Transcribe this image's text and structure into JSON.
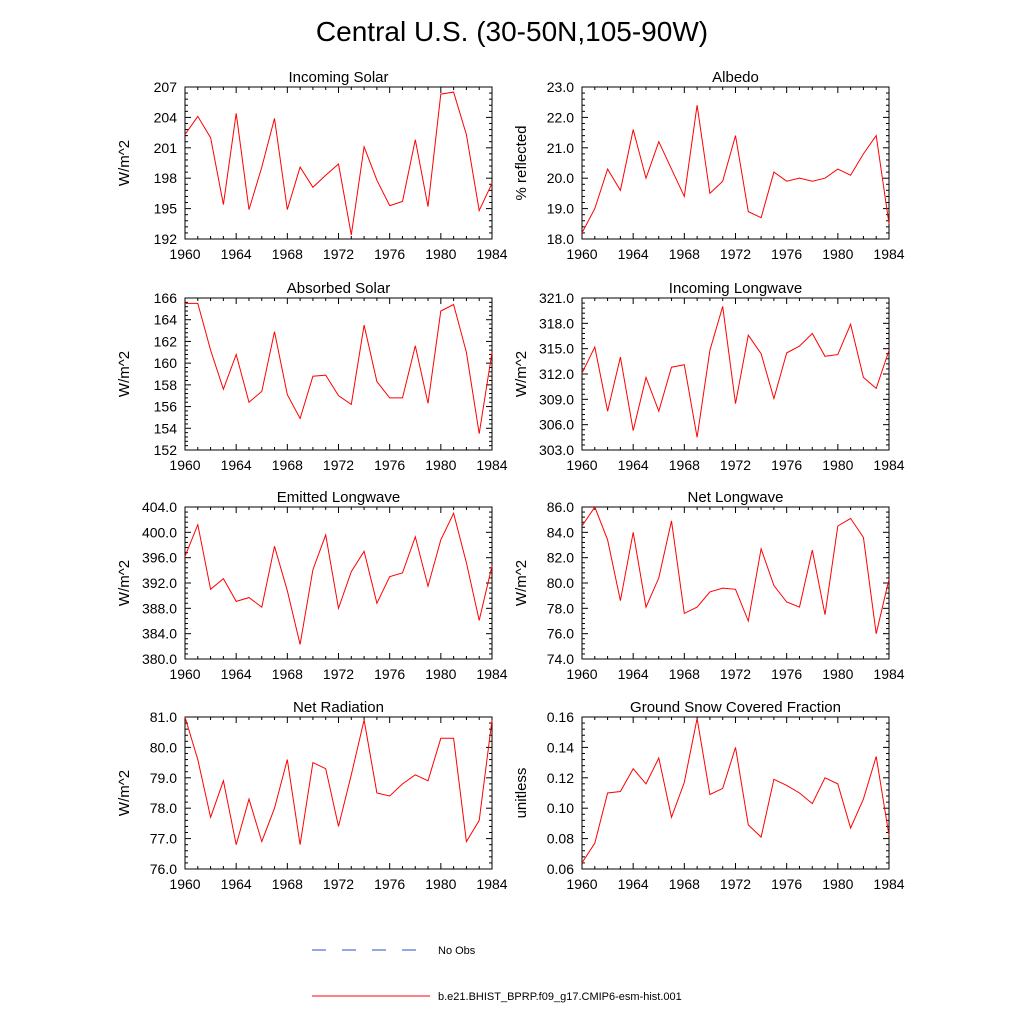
{
  "figure": {
    "title": "Central U.S. (30-50N,105-90W)"
  },
  "legend": [
    {
      "label": "No Obs",
      "color": "#2d4fd0",
      "style": "dashed"
    },
    {
      "label": "b.e21.BHIST_BPRP.f09_g17.CMIP6-esm-hist.001",
      "color": "#ff0000",
      "style": "solid"
    }
  ],
  "chart_data": [
    {
      "type": "line",
      "title": "Incoming Solar",
      "xlabel": "",
      "ylabel": "W/m^2",
      "xlim": [
        1960,
        1984
      ],
      "ylim": [
        192,
        207
      ],
      "xticks": [
        "1960",
        "1964",
        "1968",
        "1972",
        "1976",
        "1980",
        "1984"
      ],
      "yticks": [
        "192",
        "195",
        "198",
        "201",
        "204",
        "207"
      ],
      "series": [
        {
          "color": "#ff0000",
          "x": [
            1960,
            1961,
            1962,
            1963,
            1964,
            1965,
            1966,
            1967,
            1968,
            1969,
            1970,
            1971,
            1972,
            1973,
            1974,
            1975,
            1976,
            1977,
            1978,
            1979,
            1980,
            1981,
            1982,
            1983,
            1984
          ],
          "values": [
            202.3,
            204.1,
            202.0,
            195.4,
            204.4,
            194.9,
            199.1,
            203.9,
            194.9,
            199.1,
            197.1,
            198.3,
            199.4,
            192.4,
            201.1,
            197.8,
            195.3,
            195.7,
            201.8,
            195.2,
            206.3,
            206.5,
            202.3,
            194.8,
            197.5
          ]
        }
      ]
    },
    {
      "type": "line",
      "title": "Albedo",
      "xlabel": "",
      "ylabel": "% reflected",
      "xlim": [
        1960,
        1984
      ],
      "ylim": [
        18.0,
        23.0
      ],
      "xticks": [
        "1960",
        "1964",
        "1968",
        "1972",
        "1976",
        "1980",
        "1984"
      ],
      "yticks": [
        "18.0",
        "19.0",
        "20.0",
        "21.0",
        "22.0",
        "23.0"
      ],
      "series": [
        {
          "color": "#ff0000",
          "x": [
            1960,
            1961,
            1962,
            1963,
            1964,
            1965,
            1966,
            1967,
            1968,
            1969,
            1970,
            1971,
            1972,
            1973,
            1974,
            1975,
            1976,
            1977,
            1978,
            1979,
            1980,
            1981,
            1982,
            1983,
            1984
          ],
          "values": [
            18.2,
            19.0,
            20.3,
            19.6,
            21.6,
            20.0,
            21.2,
            20.3,
            19.4,
            22.4,
            19.5,
            19.9,
            21.4,
            18.9,
            18.7,
            20.2,
            19.9,
            20.0,
            19.9,
            20.0,
            20.3,
            20.1,
            20.8,
            21.4,
            18.5
          ]
        }
      ]
    },
    {
      "type": "line",
      "title": "Absorbed Solar",
      "xlabel": "",
      "ylabel": "W/m^2",
      "xlim": [
        1960,
        1984
      ],
      "ylim": [
        152,
        166
      ],
      "xticks": [
        "1960",
        "1964",
        "1968",
        "1972",
        "1976",
        "1980",
        "1984"
      ],
      "yticks": [
        "152",
        "154",
        "156",
        "158",
        "160",
        "162",
        "164",
        "166"
      ],
      "series": [
        {
          "color": "#ff0000",
          "x": [
            1960,
            1961,
            1962,
            1963,
            1964,
            1965,
            1966,
            1967,
            1968,
            1969,
            1970,
            1971,
            1972,
            1973,
            1974,
            1975,
            1976,
            1977,
            1978,
            1979,
            1980,
            1981,
            1982,
            1983,
            1984
          ],
          "values": [
            165.5,
            165.5,
            161.2,
            157.6,
            160.8,
            156.4,
            157.4,
            162.9,
            157.1,
            154.9,
            158.8,
            158.9,
            157.0,
            156.2,
            163.5,
            158.3,
            156.8,
            156.8,
            161.6,
            156.3,
            164.8,
            165.4,
            161.0,
            153.5,
            161.0
          ]
        }
      ]
    },
    {
      "type": "line",
      "title": "Incoming Longwave",
      "xlabel": "",
      "ylabel": "W/m^2",
      "xlim": [
        1960,
        1984
      ],
      "ylim": [
        303.0,
        321.0
      ],
      "xticks": [
        "1960",
        "1964",
        "1968",
        "1972",
        "1976",
        "1980",
        "1984"
      ],
      "yticks": [
        "303.0",
        "306.0",
        "309.0",
        "312.0",
        "315.0",
        "318.0",
        "321.0"
      ],
      "series": [
        {
          "color": "#ff0000",
          "x": [
            1960,
            1961,
            1962,
            1963,
            1964,
            1965,
            1966,
            1967,
            1968,
            1969,
            1970,
            1971,
            1972,
            1973,
            1974,
            1975,
            1976,
            1977,
            1978,
            1979,
            1980,
            1981,
            1982,
            1983,
            1984
          ],
          "values": [
            312.1,
            315.2,
            307.6,
            314.0,
            305.3,
            311.6,
            307.6,
            312.8,
            313.1,
            304.5,
            314.8,
            320.0,
            308.5,
            316.6,
            314.4,
            309.1,
            314.5,
            315.3,
            316.8,
            314.1,
            314.3,
            317.9,
            311.6,
            310.3,
            314.8
          ]
        }
      ]
    },
    {
      "type": "line",
      "title": "Emitted Longwave",
      "xlabel": "",
      "ylabel": "W/m^2",
      "xlim": [
        1960,
        1984
      ],
      "ylim": [
        380.0,
        404.0
      ],
      "xticks": [
        "1960",
        "1964",
        "1968",
        "1972",
        "1976",
        "1980",
        "1984"
      ],
      "yticks": [
        "380.0",
        "384.0",
        "388.0",
        "392.0",
        "396.0",
        "400.0",
        "404.0"
      ],
      "series": [
        {
          "color": "#ff0000",
          "x": [
            1960,
            1961,
            1962,
            1963,
            1964,
            1965,
            1966,
            1967,
            1968,
            1969,
            1970,
            1971,
            1972,
            1973,
            1974,
            1975,
            1976,
            1977,
            1978,
            1979,
            1980,
            1981,
            1982,
            1983,
            1984
          ],
          "values": [
            396.2,
            401.2,
            391.0,
            392.7,
            389.1,
            389.7,
            388.2,
            397.8,
            390.8,
            382.3,
            394.1,
            399.6,
            388.0,
            393.8,
            397.0,
            388.8,
            393.0,
            393.6,
            399.3,
            391.5,
            398.8,
            403.0,
            395.2,
            386.1,
            394.7
          ]
        }
      ]
    },
    {
      "type": "line",
      "title": "Net Longwave",
      "xlabel": "",
      "ylabel": "W/m^2",
      "xlim": [
        1960,
        1984
      ],
      "ylim": [
        74.0,
        86.0
      ],
      "xticks": [
        "1960",
        "1964",
        "1968",
        "1972",
        "1976",
        "1980",
        "1984"
      ],
      "yticks": [
        "74.0",
        "76.0",
        "78.0",
        "80.0",
        "82.0",
        "84.0",
        "86.0"
      ],
      "series": [
        {
          "color": "#ff0000",
          "x": [
            1960,
            1961,
            1962,
            1963,
            1964,
            1965,
            1966,
            1967,
            1968,
            1969,
            1970,
            1971,
            1972,
            1973,
            1974,
            1975,
            1976,
            1977,
            1978,
            1979,
            1980,
            1981,
            1982,
            1983,
            1984
          ],
          "values": [
            84.5,
            86.0,
            83.4,
            78.6,
            84.0,
            78.1,
            80.4,
            84.9,
            77.6,
            78.1,
            79.3,
            79.6,
            79.5,
            77.0,
            82.7,
            79.8,
            78.5,
            78.1,
            82.6,
            77.5,
            84.5,
            85.1,
            83.6,
            76.0,
            80.3
          ]
        }
      ]
    },
    {
      "type": "line",
      "title": "Net Radiation",
      "xlabel": "",
      "ylabel": "W/m^2",
      "xlim": [
        1960,
        1984
      ],
      "ylim": [
        76.0,
        81.0
      ],
      "xticks": [
        "1960",
        "1964",
        "1968",
        "1972",
        "1976",
        "1980",
        "1984"
      ],
      "yticks": [
        "76.0",
        "77.0",
        "78.0",
        "79.0",
        "80.0",
        "81.0"
      ],
      "series": [
        {
          "color": "#ff0000",
          "x": [
            1960,
            1961,
            1962,
            1963,
            1964,
            1965,
            1966,
            1967,
            1968,
            1969,
            1970,
            1971,
            1972,
            1973,
            1974,
            1975,
            1976,
            1977,
            1978,
            1979,
            1980,
            1981,
            1982,
            1983,
            1984
          ],
          "values": [
            81.0,
            79.6,
            77.7,
            78.9,
            76.8,
            78.3,
            76.9,
            78.0,
            79.6,
            76.8,
            79.5,
            79.3,
            77.4,
            79.1,
            80.9,
            78.5,
            78.4,
            78.8,
            79.1,
            78.9,
            80.3,
            80.3,
            76.9,
            77.6,
            80.9
          ]
        }
      ]
    },
    {
      "type": "line",
      "title": "Ground Snow Covered Fraction",
      "xlabel": "",
      "ylabel": "unitless",
      "xlim": [
        1960,
        1984
      ],
      "ylim": [
        0.06,
        0.16
      ],
      "xticks": [
        "1960",
        "1964",
        "1968",
        "1972",
        "1976",
        "1980",
        "1984"
      ],
      "yticks": [
        "0.06",
        "0.08",
        "0.10",
        "0.12",
        "0.14",
        "0.16"
      ],
      "series": [
        {
          "color": "#ff0000",
          "x": [
            1960,
            1961,
            1962,
            1963,
            1964,
            1965,
            1966,
            1967,
            1968,
            1969,
            1970,
            1971,
            1972,
            1973,
            1974,
            1975,
            1976,
            1977,
            1978,
            1979,
            1980,
            1981,
            1982,
            1983,
            1984
          ],
          "values": [
            0.064,
            0.077,
            0.11,
            0.111,
            0.126,
            0.116,
            0.133,
            0.094,
            0.117,
            0.159,
            0.109,
            0.113,
            0.14,
            0.089,
            0.081,
            0.119,
            0.115,
            0.11,
            0.103,
            0.12,
            0.116,
            0.087,
            0.106,
            0.134,
            0.082
          ]
        }
      ]
    }
  ]
}
